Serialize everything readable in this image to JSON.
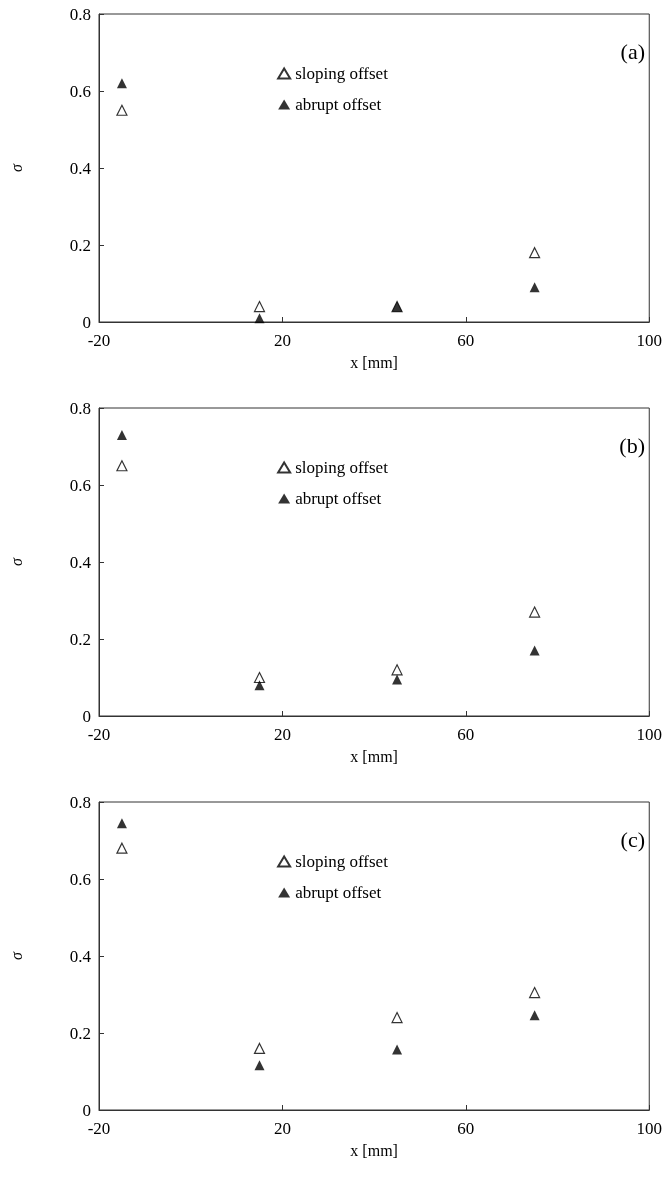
{
  "chart_data": [
    {
      "type": "scatter",
      "xlabel": "x [mm]",
      "ylabel": "σ",
      "annotations": [
        "(a)"
      ],
      "x": [
        -15,
        15,
        45,
        75
      ],
      "xlim": [
        -20,
        100
      ],
      "xticks": [
        -20,
        20,
        60,
        100
      ],
      "ylim": [
        0,
        0.8
      ],
      "yticks": [
        0,
        0.2,
        0.4,
        0.6,
        0.8
      ],
      "marker": "triangle",
      "legend": "top",
      "grid": false,
      "series": [
        {
          "name": "sloping offset",
          "color": "#000000",
          "values": [
            0.55,
            0.04,
            0.04,
            0.18
          ]
        },
        {
          "name": "abrupt offset",
          "color": "#000000",
          "values": [
            0.62,
            0.01,
            0.04,
            0.09
          ]
        }
      ]
    },
    {
      "type": "scatter",
      "xlabel": "x [mm]",
      "ylabel": "σ",
      "annotations": [
        "(b)"
      ],
      "x": [
        -15,
        15,
        45,
        75
      ],
      "xlim": [
        -20,
        100
      ],
      "xticks": [
        -20,
        20,
        60,
        100
      ],
      "ylim": [
        0,
        0.8
      ],
      "yticks": [
        0,
        0.2,
        0.4,
        0.6,
        0.8
      ],
      "marker": "triangle",
      "legend": "top",
      "grid": false,
      "series": [
        {
          "name": "sloping offset",
          "color": "#000000",
          "values": [
            0.65,
            0.1,
            0.12,
            0.27
          ]
        },
        {
          "name": "abrupt offset",
          "color": "#000000",
          "values": [
            0.73,
            0.08,
            0.095,
            0.17
          ]
        }
      ]
    },
    {
      "type": "scatter",
      "xlabel": "x [mm]",
      "ylabel": "σ",
      "annotations": [
        "(c)"
      ],
      "x": [
        -15,
        15,
        45,
        75
      ],
      "xlim": [
        -20,
        100
      ],
      "xticks": [
        -20,
        20,
        60,
        100
      ],
      "ylim": [
        0,
        0.8
      ],
      "yticks": [
        0,
        0.2,
        0.4,
        0.6,
        0.8
      ],
      "marker": "triangle",
      "legend": "top",
      "grid": false,
      "series": [
        {
          "name": "sloping offset",
          "color": "#000000",
          "values": [
            0.68,
            0.16,
            0.24,
            0.305
          ]
        },
        {
          "name": "abrupt offset",
          "color": "#000000",
          "values": [
            0.745,
            0.116,
            0.157,
            0.246
          ]
        }
      ]
    }
  ]
}
